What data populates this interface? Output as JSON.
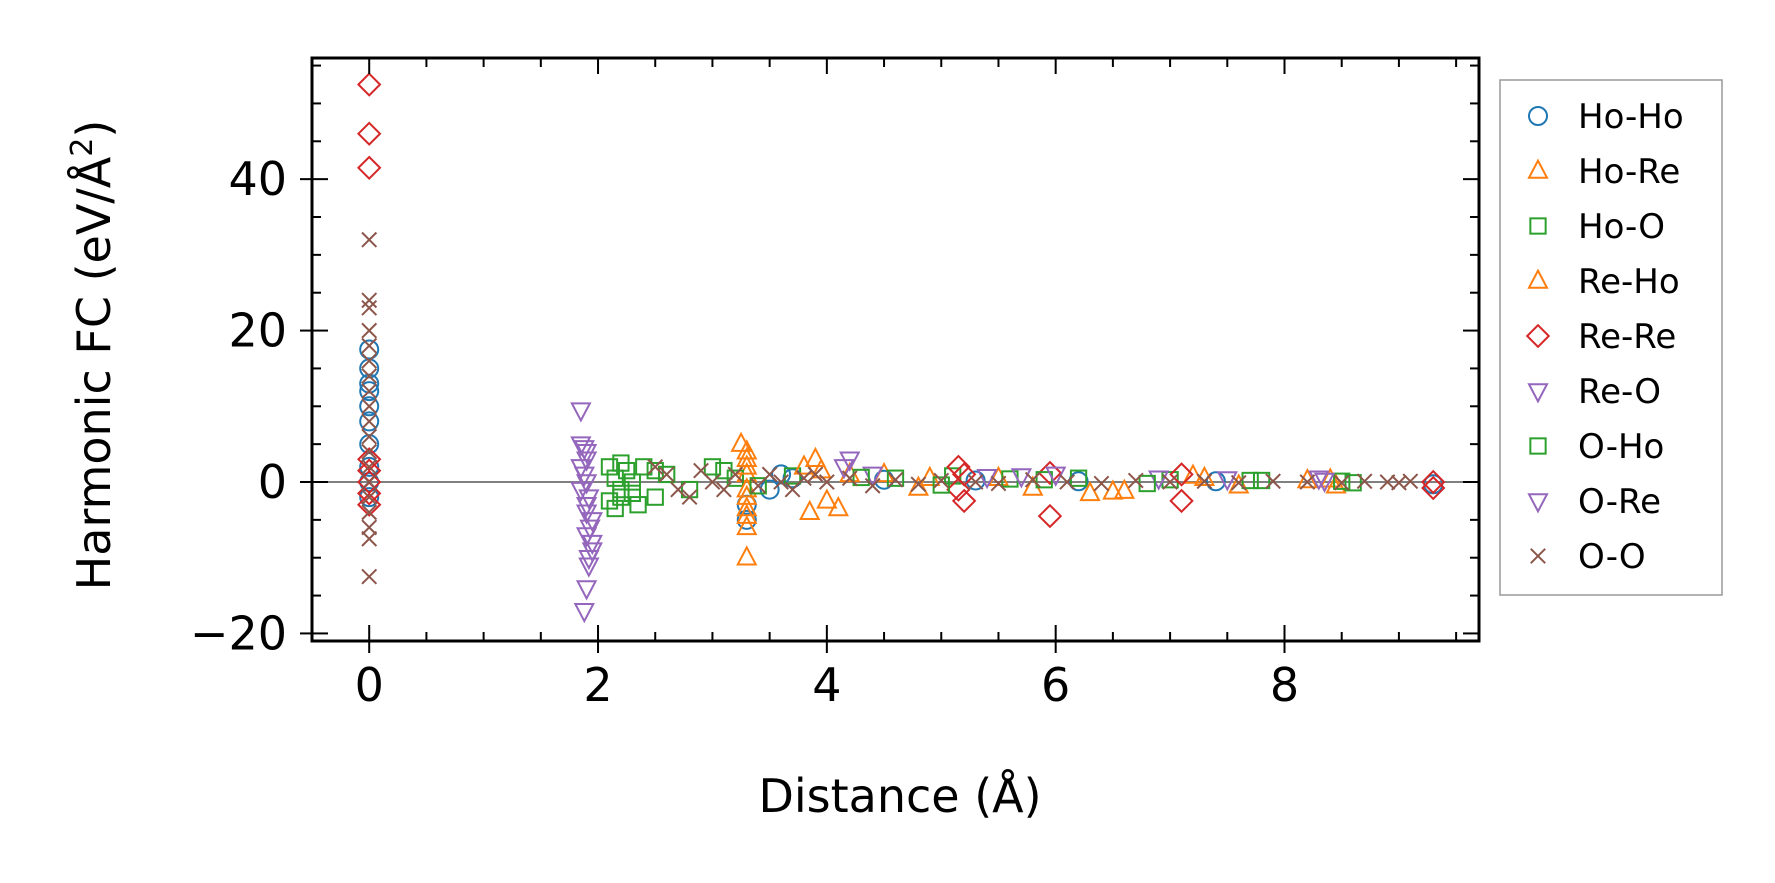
{
  "chart_data": {
    "type": "scatter",
    "xlabel": "Distance (Å)",
    "ylabel_main": "Harmonic FC (eV/Å",
    "ylabel_sup": "2",
    "ylabel_close": ")",
    "xlim": [
      -0.5,
      9.7
    ],
    "ylim": [
      -21,
      56
    ],
    "xticks": [
      0,
      2,
      4,
      6,
      8
    ],
    "xtick_labels": [
      "0",
      "2",
      "4",
      "6",
      "8"
    ],
    "yticks": [
      -20,
      0,
      20,
      40
    ],
    "ytick_labels": [
      "−20",
      "0",
      "20",
      "40"
    ],
    "zero_line": true,
    "grid": false,
    "legend_position": "outside-right",
    "series": [
      {
        "name": "Ho-Ho",
        "marker": "circle",
        "color": "#1f77b4",
        "points": [
          [
            0,
            17.5
          ],
          [
            0,
            15
          ],
          [
            0,
            13
          ],
          [
            0,
            12
          ],
          [
            0,
            10
          ],
          [
            0,
            8
          ],
          [
            0,
            5
          ],
          [
            0,
            2
          ],
          [
            0,
            0
          ],
          [
            0,
            -2
          ],
          [
            3.3,
            -3
          ],
          [
            3.3,
            -5
          ],
          [
            3.5,
            -1
          ],
          [
            3.6,
            1
          ],
          [
            3.7,
            0.5
          ],
          [
            4.5,
            0.3
          ],
          [
            5.3,
            0.2
          ],
          [
            6.2,
            0.1
          ],
          [
            7.4,
            0.1
          ],
          [
            9.3,
            -0.3
          ]
        ]
      },
      {
        "name": "Ho-Re",
        "marker": "triangle-up",
        "color": "#ff7f0e",
        "points": [
          [
            3.25,
            5
          ],
          [
            3.3,
            3
          ],
          [
            3.3,
            1
          ],
          [
            3.3,
            -2
          ],
          [
            3.3,
            -3.5
          ],
          [
            3.3,
            -6
          ],
          [
            3.3,
            -10
          ],
          [
            3.9,
            3
          ],
          [
            3.85,
            -4
          ],
          [
            4.1,
            -3.5
          ],
          [
            3.95,
            1.5
          ],
          [
            4.5,
            1
          ],
          [
            4.8,
            -0.8
          ],
          [
            5.5,
            0.5
          ],
          [
            6.3,
            -1.5
          ],
          [
            6.6,
            -1.2
          ],
          [
            7.2,
            0.8
          ],
          [
            7.6,
            -0.5
          ],
          [
            8.4,
            0.3
          ],
          [
            8.45,
            -0.5
          ]
        ]
      },
      {
        "name": "Ho-O",
        "marker": "square",
        "color": "#2ca02c",
        "points": [
          [
            2.1,
            2
          ],
          [
            2.15,
            0.5
          ],
          [
            2.2,
            -1
          ],
          [
            2.1,
            -2.5
          ],
          [
            2.15,
            -3.5
          ],
          [
            2.25,
            1.5
          ],
          [
            2.3,
            -1.5
          ],
          [
            2.4,
            2
          ],
          [
            2.5,
            -2
          ],
          [
            2.6,
            1
          ],
          [
            3.0,
            2
          ],
          [
            3.2,
            0.5
          ],
          [
            3.7,
            0.8
          ],
          [
            4.6,
            0.5
          ],
          [
            5.1,
            0.8
          ],
          [
            5.6,
            0.4
          ],
          [
            6.2,
            0.5
          ],
          [
            7.0,
            0.3
          ],
          [
            7.8,
            0.2
          ],
          [
            8.5,
            0.1
          ]
        ]
      },
      {
        "name": "Re-Ho",
        "marker": "triangle-up",
        "color": "#ff7f0e",
        "points": [
          [
            3.3,
            4
          ],
          [
            3.3,
            2
          ],
          [
            3.3,
            -1
          ],
          [
            3.3,
            -4.5
          ],
          [
            3.8,
            2
          ],
          [
            4.0,
            -2.5
          ],
          [
            4.2,
            1
          ],
          [
            4.9,
            0.5
          ],
          [
            5.8,
            -0.8
          ],
          [
            6.5,
            -1.3
          ],
          [
            7.3,
            0.5
          ],
          [
            8.2,
            0.2
          ]
        ]
      },
      {
        "name": "Re-Re",
        "marker": "diamond",
        "color": "#d62728",
        "points": [
          [
            0,
            52.5
          ],
          [
            0,
            46
          ],
          [
            0,
            41.5
          ],
          [
            0,
            3
          ],
          [
            0,
            1.5
          ],
          [
            0,
            0
          ],
          [
            0,
            -1.5
          ],
          [
            0,
            -3
          ],
          [
            5.15,
            2
          ],
          [
            5.2,
            1
          ],
          [
            5.15,
            -1
          ],
          [
            5.2,
            -2.5
          ],
          [
            5.95,
            1.2
          ],
          [
            5.95,
            -4.5
          ],
          [
            7.1,
            1
          ],
          [
            7.1,
            -2.5
          ],
          [
            9.3,
            0
          ],
          [
            9.3,
            -0.8
          ]
        ]
      },
      {
        "name": "Re-O",
        "marker": "triangle-down",
        "color": "#9467bd",
        "points": [
          [
            1.85,
            9.5
          ],
          [
            1.85,
            5
          ],
          [
            1.9,
            4
          ],
          [
            1.85,
            2
          ],
          [
            1.9,
            0
          ],
          [
            1.85,
            -1
          ],
          [
            1.9,
            -3
          ],
          [
            1.95,
            -5
          ],
          [
            1.9,
            -7
          ],
          [
            1.95,
            -8
          ],
          [
            1.92,
            -11
          ],
          [
            1.9,
            -14
          ],
          [
            1.88,
            -17
          ],
          [
            4.2,
            3
          ],
          [
            4.4,
            1
          ],
          [
            5.7,
            0.8
          ],
          [
            6.9,
            0.5
          ],
          [
            8.3,
            0.5
          ]
        ]
      },
      {
        "name": "O-Ho",
        "marker": "square",
        "color": "#2ca02c",
        "points": [
          [
            2.2,
            2.5
          ],
          [
            2.3,
            0
          ],
          [
            2.2,
            -2
          ],
          [
            2.35,
            -3
          ],
          [
            2.5,
            1.5
          ],
          [
            2.8,
            -1
          ],
          [
            3.1,
            1.5
          ],
          [
            3.4,
            -0.5
          ],
          [
            4.3,
            0.6
          ],
          [
            5.0,
            -0.4
          ],
          [
            5.9,
            0.3
          ],
          [
            6.8,
            -0.2
          ],
          [
            7.7,
            0.2
          ],
          [
            8.6,
            -0.1
          ]
        ]
      },
      {
        "name": "O-Re",
        "marker": "triangle-down",
        "color": "#9467bd",
        "points": [
          [
            1.88,
            4.5
          ],
          [
            1.9,
            3
          ],
          [
            1.88,
            1
          ],
          [
            1.92,
            -2
          ],
          [
            1.9,
            -4
          ],
          [
            1.93,
            -6
          ],
          [
            1.95,
            -9
          ],
          [
            1.92,
            -10
          ],
          [
            4.15,
            2
          ],
          [
            5.4,
            0.7
          ],
          [
            6.0,
            1
          ],
          [
            7.5,
            0.4
          ],
          [
            8.35,
            0.2
          ]
        ]
      },
      {
        "name": "O-O",
        "marker": "x",
        "color": "#8c564b",
        "points": [
          [
            0,
            32
          ],
          [
            0,
            24
          ],
          [
            0,
            23
          ],
          [
            0,
            20
          ],
          [
            0,
            18
          ],
          [
            0,
            16
          ],
          [
            0,
            14
          ],
          [
            0,
            12
          ],
          [
            0,
            10
          ],
          [
            0,
            8
          ],
          [
            0,
            6
          ],
          [
            0,
            4
          ],
          [
            0,
            2
          ],
          [
            0,
            0
          ],
          [
            0,
            -2
          ],
          [
            0,
            -4
          ],
          [
            0,
            -6
          ],
          [
            0,
            -7.5
          ],
          [
            0,
            -12.5
          ],
          [
            2.5,
            2
          ],
          [
            2.6,
            1
          ],
          [
            2.7,
            -1
          ],
          [
            2.8,
            -2
          ],
          [
            2.9,
            1.5
          ],
          [
            3.0,
            0
          ],
          [
            3.1,
            -1
          ],
          [
            3.2,
            1
          ],
          [
            3.4,
            -0.5
          ],
          [
            3.5,
            1
          ],
          [
            3.6,
            0
          ],
          [
            3.7,
            -1
          ],
          [
            3.8,
            0.5
          ],
          [
            3.9,
            1
          ],
          [
            4.0,
            0
          ],
          [
            4.2,
            0.5
          ],
          [
            4.4,
            -0.5
          ],
          [
            4.6,
            0.3
          ],
          [
            4.8,
            -0.3
          ],
          [
            5.0,
            0.2
          ],
          [
            5.3,
            0
          ],
          [
            5.5,
            -0.2
          ],
          [
            5.8,
            0.3
          ],
          [
            6.1,
            0
          ],
          [
            6.4,
            -0.2
          ],
          [
            6.7,
            0.2
          ],
          [
            7.0,
            0
          ],
          [
            7.3,
            0.1
          ],
          [
            7.6,
            -0.1
          ],
          [
            7.9,
            0.1
          ],
          [
            8.2,
            0
          ],
          [
            8.5,
            -0.1
          ],
          [
            8.7,
            0.1
          ],
          [
            8.9,
            0
          ],
          [
            9.0,
            -0.1
          ],
          [
            9.1,
            0.1
          ]
        ]
      }
    ]
  }
}
